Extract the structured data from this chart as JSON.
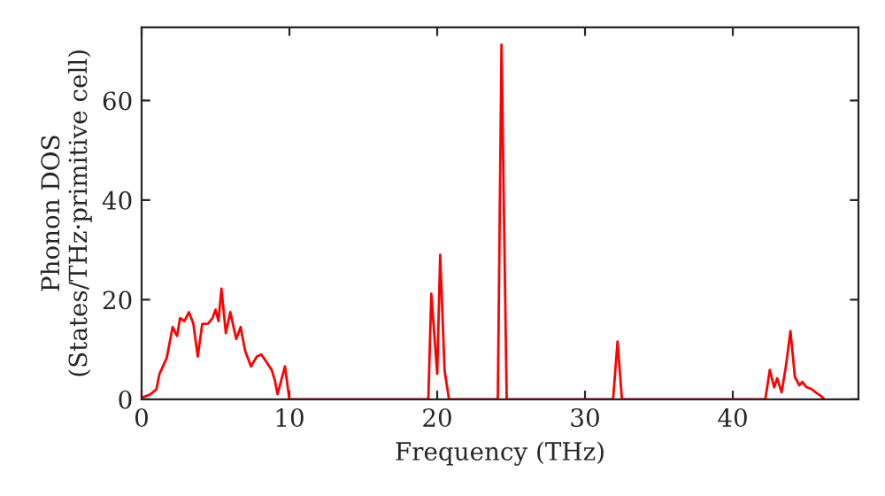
{
  "chart_data": {
    "type": "line",
    "xlabel": "Frequency (THz)",
    "ylabel": "Phonon DOS\n(States/THz·primitive cell)",
    "xlim": [
      0,
      48.5
    ],
    "ylim": [
      0,
      74.7
    ],
    "xticks": [
      0,
      10,
      20,
      30,
      40
    ],
    "yticks": [
      0,
      20,
      40,
      60
    ],
    "grid": false,
    "line_style": "solid",
    "marker": "none",
    "series": [
      {
        "color": "#ff0000",
        "x": [
          0,
          0.6,
          1.0,
          1.2,
          1.7,
          2.1,
          2.4,
          2.6,
          2.9,
          3.2,
          3.5,
          3.8,
          4.1,
          4.5,
          4.8,
          5.0,
          5.2,
          5.4,
          5.7,
          6.0,
          6.4,
          6.7,
          7.0,
          7.4,
          7.8,
          8.1,
          8.4,
          8.8,
          9.0,
          9.2,
          9.7,
          10.0,
          19.4,
          19.6,
          20.0,
          20.2,
          20.5,
          20.8,
          24.1,
          24.35,
          24.7,
          31.9,
          32.2,
          32.5,
          42.2,
          42.5,
          42.8,
          43.0,
          43.3,
          43.6,
          43.9,
          44.2,
          44.5,
          44.7,
          45.0,
          45.3,
          45.6,
          45.9,
          46.2
        ],
        "values": [
          0.3,
          1,
          2,
          5,
          8.3,
          14.5,
          12.7,
          16.3,
          15.7,
          17.5,
          15.2,
          8.6,
          15.1,
          15.2,
          16.3,
          18,
          15.7,
          22.2,
          13.3,
          17.5,
          12.1,
          14.5,
          9.8,
          6.6,
          8.6,
          9,
          7.7,
          5.9,
          4,
          1,
          6.6,
          0,
          0,
          21.2,
          5.1,
          29,
          5.7,
          0,
          0,
          71.2,
          0,
          0,
          11.6,
          0,
          0,
          5.9,
          2.4,
          4.2,
          1.4,
          6.8,
          13.7,
          4.5,
          2.8,
          3.5,
          2.4,
          2.1,
          1.4,
          0.8,
          0
        ]
      }
    ]
  }
}
